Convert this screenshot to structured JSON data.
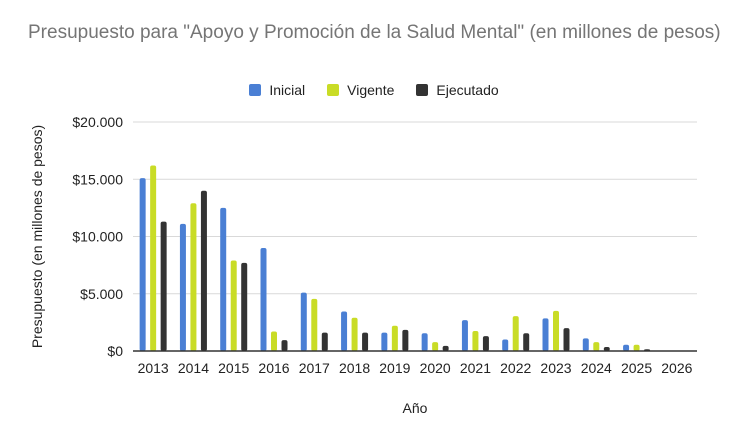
{
  "chart_data": {
    "type": "bar",
    "title": "Presupuesto para \"Apoyo y Promoción de la Salud Mental\" (en millones de pesos)",
    "xlabel": "Año",
    "ylabel": "Presupuesto (en millones de pesos)",
    "ylim": [
      0,
      20000
    ],
    "yticks": [
      0,
      5000,
      10000,
      15000,
      20000
    ],
    "ytick_labels": [
      "$0",
      "$5.000",
      "$10.000",
      "$15.000",
      "$20.000"
    ],
    "grid": true,
    "legend_position": "top",
    "categories": [
      "2013",
      "2014",
      "2015",
      "2016",
      "2017",
      "2018",
      "2019",
      "2020",
      "2021",
      "2022",
      "2023",
      "2024",
      "2025",
      "2026"
    ],
    "series": [
      {
        "name": "Inicial",
        "color": "#4a7fd4",
        "values": [
          15100,
          11100,
          12500,
          9000,
          5100,
          3450,
          1600,
          1550,
          2700,
          1000,
          2850,
          1100,
          550,
          0
        ]
      },
      {
        "name": "Vigente",
        "color": "#c9dc26",
        "values": [
          16200,
          12900,
          7900,
          1700,
          4550,
          2900,
          2200,
          780,
          1750,
          3050,
          3500,
          780,
          550,
          0
        ]
      },
      {
        "name": "Ejecutado",
        "color": "#333333",
        "values": [
          11300,
          14000,
          7700,
          950,
          1600,
          1600,
          1850,
          450,
          1300,
          1550,
          2000,
          350,
          150,
          0
        ]
      }
    ]
  }
}
